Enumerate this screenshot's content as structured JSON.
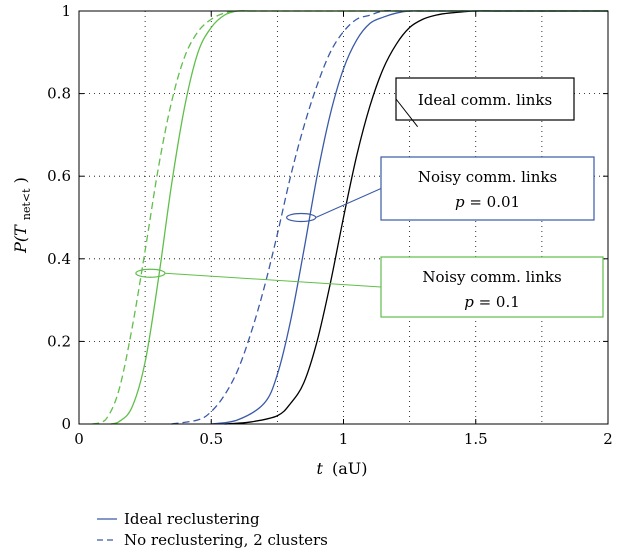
{
  "chart_data": {
    "type": "line",
    "xlabel_var": "t",
    "xlabel_unit": "(aU)",
    "ylabel_prefix": "P(T",
    "ylabel_sub": "net<t",
    "ylabel_suffix": ")",
    "xlim": [
      0,
      2
    ],
    "ylim": [
      0,
      1
    ],
    "xticks": [
      0,
      0.5,
      1,
      1.5,
      2
    ],
    "yticks": [
      0,
      0.2,
      0.4,
      0.6,
      0.8,
      1
    ],
    "xtick_labels": [
      "0",
      "0.5",
      "1",
      "1.5",
      "2"
    ],
    "ytick_labels": [
      "0",
      "0.2",
      "0.4",
      "0.6",
      "0.8",
      "1"
    ],
    "grid": true,
    "colors": {
      "black": "#000000",
      "blue": "#3a5aa8",
      "green": "#5fbf4a"
    },
    "series": [
      {
        "color": "black",
        "style": "solid",
        "x": [
          0.55,
          0.65,
          0.75,
          0.8,
          0.85,
          0.9,
          0.95,
          1.0,
          1.05,
          1.1,
          1.15,
          1.2,
          1.25,
          1.3,
          1.35,
          1.4,
          1.5,
          1.6,
          2.0
        ],
        "y": [
          0,
          0.005,
          0.02,
          0.05,
          0.1,
          0.2,
          0.34,
          0.5,
          0.65,
          0.77,
          0.86,
          0.92,
          0.96,
          0.98,
          0.99,
          0.995,
          1,
          1,
          1
        ]
      },
      {
        "color": "blue",
        "style": "solid",
        "x": [
          0.5,
          0.6,
          0.7,
          0.75,
          0.8,
          0.85,
          0.9,
          0.95,
          1.0,
          1.05,
          1.1,
          1.15,
          1.2,
          1.25,
          1.3,
          1.35,
          1.4,
          1.5,
          2.0
        ],
        "y": [
          0,
          0.01,
          0.05,
          0.12,
          0.25,
          0.42,
          0.6,
          0.75,
          0.86,
          0.93,
          0.97,
          0.985,
          0.995,
          1,
          1,
          1,
          1,
          1,
          1
        ]
      },
      {
        "color": "blue",
        "style": "dashed",
        "x": [
          0.35,
          0.45,
          0.5,
          0.55,
          0.6,
          0.65,
          0.7,
          0.75,
          0.8,
          0.85,
          0.9,
          0.95,
          1.0,
          1.05,
          1.1,
          1.15,
          1.2,
          1.25,
          1.3,
          1.4,
          2.0
        ],
        "y": [
          0,
          0.01,
          0.03,
          0.07,
          0.13,
          0.22,
          0.33,
          0.46,
          0.6,
          0.72,
          0.82,
          0.9,
          0.95,
          0.98,
          0.99,
          1,
          1,
          1,
          1,
          1,
          1
        ]
      },
      {
        "color": "green",
        "style": "solid",
        "x": [
          0.12,
          0.15,
          0.2,
          0.25,
          0.3,
          0.35,
          0.4,
          0.45,
          0.5,
          0.55,
          0.6,
          0.65,
          0.7,
          0.8,
          2.0
        ],
        "y": [
          0,
          0.005,
          0.04,
          0.15,
          0.35,
          0.58,
          0.77,
          0.9,
          0.96,
          0.99,
          1,
          1,
          1,
          1,
          1
        ]
      },
      {
        "color": "green",
        "style": "dashed",
        "x": [
          0.05,
          0.1,
          0.15,
          0.2,
          0.25,
          0.3,
          0.35,
          0.4,
          0.45,
          0.5,
          0.55,
          0.6,
          0.65,
          0.7,
          2.0
        ],
        "y": [
          0,
          0.01,
          0.08,
          0.23,
          0.42,
          0.62,
          0.78,
          0.89,
          0.95,
          0.98,
          0.995,
          1,
          1,
          1,
          1
        ]
      }
    ],
    "annotations": [
      {
        "color": "black",
        "line1": "Ideal comm. links",
        "line2": "",
        "ellipse": null,
        "pointer_from": [
          1.25,
          0.72
        ]
      },
      {
        "color": "blue",
        "line1": "Noisy comm. links",
        "line2_var": "p",
        "line2_val": " = 0.01",
        "ellipse": {
          "cx": 0.84,
          "cy": 0.5,
          "rx": 0.055,
          "ry": 0.01
        }
      },
      {
        "color": "green",
        "line1": "Noisy comm. links",
        "line2_var": "p",
        "line2_val": " = 0.1",
        "ellipse": {
          "cx": 0.27,
          "cy": 0.365,
          "rx": 0.055,
          "ry": 0.01
        }
      }
    ],
    "legend": [
      {
        "label": "Ideal reclustering",
        "style": "solid",
        "color": "blue"
      },
      {
        "label": "No reclustering, 2 clusters",
        "style": "dashed",
        "color": "blue"
      }
    ]
  }
}
